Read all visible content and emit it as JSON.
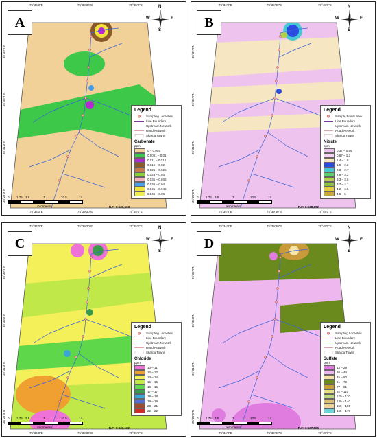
{
  "coords": {
    "top": [
      "75°34'0\"E",
      "75°39'30\"E",
      "75°45'0\"E"
    ],
    "bottom": [
      "75°34'0\"E",
      "75°39'30\"E",
      "75°45'0\"E"
    ],
    "left": [
      "35°27'0\"N",
      "35°31'0\"N",
      "35°35'0\"N",
      "35°39'0\"N"
    ],
    "right": [
      "35°27'0\"N",
      "35°31'0\"N",
      "35°35'0\"N",
      "35°39'0\"N"
    ]
  },
  "north": {
    "n": "N",
    "s": "S",
    "e": "E",
    "w": "W"
  },
  "scale": {
    "ticks": [
      "0",
      "1.75",
      "3.5",
      "7",
      "10.5",
      "14"
    ],
    "unit": "Kilometers"
  },
  "panels": [
    {
      "letter": "A",
      "rf": "R.F: 1:137,633",
      "legend_title": "Legend",
      "items": [
        "Sampling Localities",
        "Line Boundary",
        "Upstream Network",
        "Road Network",
        "Skardu Towns"
      ],
      "param": "Carbonate",
      "unit": "ppm",
      "classes": [
        "0 – 0.005",
        "0.0051 – 0.01",
        "0.011 – 0.015",
        "0.016 – 0.02",
        "0.021 – 0.025",
        "0.026 – 0.03",
        "0.031 – 0.035",
        "0.036 – 0.04",
        "0.041 – 0.045",
        "0.046 – 0.05"
      ],
      "colors": [
        "#f2d199",
        "#3ec84a",
        "#b629d1",
        "#8b5a2b",
        "#c97a4a",
        "#8fd12e",
        "#f3b3c0",
        "#4aa0e8",
        "#f3e23a",
        "#f0ef50"
      ]
    },
    {
      "letter": "B",
      "rf": "R.F: 1:138,292",
      "legend_title": "Legend",
      "items": [
        "Sample Points New",
        "Line Boundary",
        "Upstream Network",
        "Road Network",
        "Skardu Towns"
      ],
      "param": "Nitrate",
      "unit": "ppm",
      "classes": [
        "0.37 – 0.86",
        "0.87 – 1.3",
        "1.4 – 1.8",
        "1.9 – 2.2",
        "2.3 – 2.7",
        "2.8 – 3.2",
        "3.3 – 3.6",
        "3.7 – 4.1",
        "4.2 – 4.5",
        "4.6 – 5"
      ],
      "colors": [
        "#eec4ee",
        "#f5d0f0",
        "#f6e6c2",
        "#2a4ce0",
        "#46c8d4",
        "#56d66a",
        "#b0d24a",
        "#8cc23c",
        "#e8cc3a",
        "#c8a83c"
      ]
    },
    {
      "letter": "C",
      "rf": "R.F: 1:137,132",
      "legend_title": "Legend",
      "items": [
        "Sampling Localities",
        "Line Boundary",
        "Upstream Network",
        "Road Network",
        "Skardu Towns"
      ],
      "param": "Chloride",
      "unit": "ppm",
      "classes": [
        "10 – 11",
        "12 – 12",
        "13 – 14",
        "15 – 15",
        "16 – 16",
        "17 – 17",
        "18 – 18",
        "19 – 19",
        "20 – 21",
        "22 – 22"
      ],
      "colors": [
        "#ee72d8",
        "#f0a030",
        "#f3f05a",
        "#bfe848",
        "#5ed84a",
        "#3a9c4a",
        "#3aa6d8",
        "#5a6ad0",
        "#a04a30",
        "#d02a2a"
      ]
    },
    {
      "letter": "D",
      "rf": "R.F: 1:137,866",
      "legend_title": "Legend",
      "items": [
        "Sampling Localities",
        "Line Boundary",
        "Upstream Network",
        "Road Network",
        "Skardu Towns"
      ],
      "param": "Sulfate",
      "unit": "ppm",
      "classes": [
        "13 – 29",
        "30 – 44",
        "45 – 60",
        "61 – 76",
        "77 – 91",
        "92 – 110",
        "120 – 120",
        "130 – 140",
        "150 – 150",
        "160 – 170"
      ],
      "colors": [
        "#e07ce0",
        "#eeb8ee",
        "#f6e4a8",
        "#6a8a1e",
        "#c89a3a",
        "#e6e08a",
        "#bed878",
        "#d8c06a",
        "#f2d09a",
        "#6ad6d8"
      ]
    }
  ]
}
